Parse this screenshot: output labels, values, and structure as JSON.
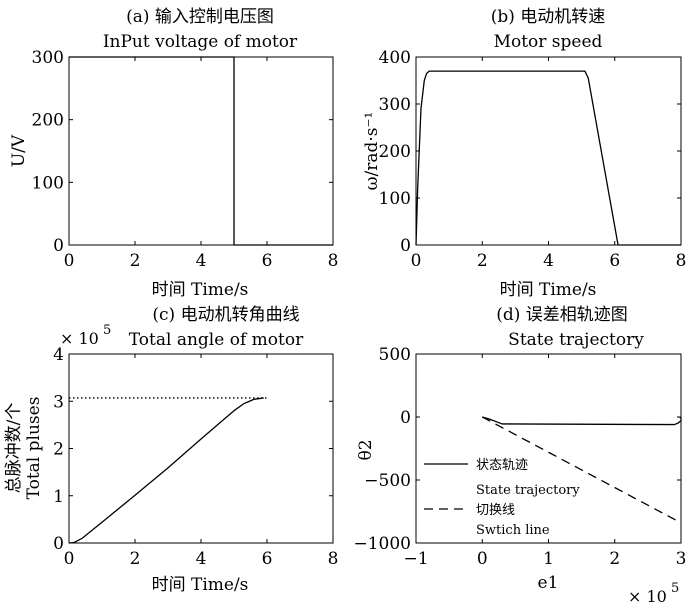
{
  "chart_data": [
    {
      "type": "line",
      "panel": "a",
      "title": "(a) 输入控制电压图",
      "subtitle": "InPut voltage of motor",
      "xlabel": "时间 Time/s",
      "ylabel": "U/V",
      "xlim": [
        0,
        8
      ],
      "ylim": [
        0,
        300
      ],
      "xticks": [
        "0",
        "2",
        "4",
        "6",
        "8"
      ],
      "yticks": [
        "0",
        "100",
        "200",
        "300"
      ],
      "series": [
        {
          "x": [
            0,
            5,
            5,
            8
          ],
          "y": [
            300,
            300,
            0,
            0
          ]
        }
      ]
    },
    {
      "type": "line",
      "panel": "b",
      "title": "(b) 电动机转速",
      "subtitle": "Motor speed",
      "xlabel": "时间 Time/s",
      "ylabel": "ω/rad·s⁻¹",
      "xlim": [
        0,
        8
      ],
      "ylim": [
        0,
        400
      ],
      "xticks": [
        "0",
        "2",
        "4",
        "6",
        "8"
      ],
      "yticks": [
        "0",
        "100",
        "200",
        "300",
        "400"
      ],
      "series": [
        {
          "x": [
            0,
            0.05,
            0.15,
            0.25,
            0.32,
            0.4,
            0.6,
            5.1,
            5.2,
            6.1,
            8
          ],
          "y": [
            0,
            120,
            290,
            350,
            365,
            370,
            370,
            370,
            355,
            0,
            0
          ]
        }
      ]
    },
    {
      "type": "line",
      "panel": "c",
      "title": "(c) 电动机转角曲线",
      "subtitle": "Total angle of motor",
      "xlabel": "时间 Time/s",
      "ylabel": "总脉冲数/个",
      "ylabel2": "Total pluses",
      "exponent_label": "× 10",
      "exponent": "5",
      "xlim": [
        0,
        8
      ],
      "ylim": [
        0,
        4
      ],
      "xticks": [
        "0",
        "2",
        "4",
        "6",
        "8"
      ],
      "yticks": [
        "0",
        "1",
        "2",
        "3",
        "4"
      ],
      "series": [
        {
          "style": "solid",
          "x": [
            0,
            0.15,
            0.4,
            1,
            2,
            3,
            4,
            4.6,
            5,
            5.3,
            5.6,
            5.9
          ],
          "y": [
            0,
            0.01,
            0.1,
            0.44,
            1.01,
            1.59,
            2.2,
            2.56,
            2.8,
            2.95,
            3.04,
            3.07
          ]
        },
        {
          "style": "dotted",
          "x": [
            0,
            6
          ],
          "y": [
            3.07,
            3.07
          ]
        }
      ]
    },
    {
      "type": "line",
      "panel": "d",
      "title": "(d) 误差相轨迹图",
      "subtitle": "State trajectory",
      "xlabel": "e1",
      "ylabel": "θ2",
      "exponent_label": "× 10",
      "exponent": "5",
      "xlim": [
        -1,
        3
      ],
      "ylim": [
        -1000,
        500
      ],
      "xticks": [
        "−1",
        "0",
        "1",
        "2",
        "3"
      ],
      "yticks": [
        "−1000",
        "−500",
        "0",
        "500"
      ],
      "legend": {
        "placement": "bottom-left",
        "entries": [
          {
            "label": "状态轨迹",
            "label2": "State trajectory",
            "style": "solid"
          },
          {
            "label": "切换线",
            "label2": "Swtich line",
            "style": "dashed"
          }
        ]
      },
      "series": [
        {
          "name": "状态轨迹",
          "style": "solid",
          "x": [
            0,
            0.1,
            0.3,
            2.9,
            2.95,
            3,
            3,
            2.98
          ],
          "y": [
            0,
            -15,
            -55,
            -60,
            -50,
            -30,
            -10,
            0
          ]
        },
        {
          "name": "切换线",
          "style": "dashed",
          "x": [
            0,
            3
          ],
          "y": [
            0,
            -840
          ]
        }
      ]
    }
  ]
}
